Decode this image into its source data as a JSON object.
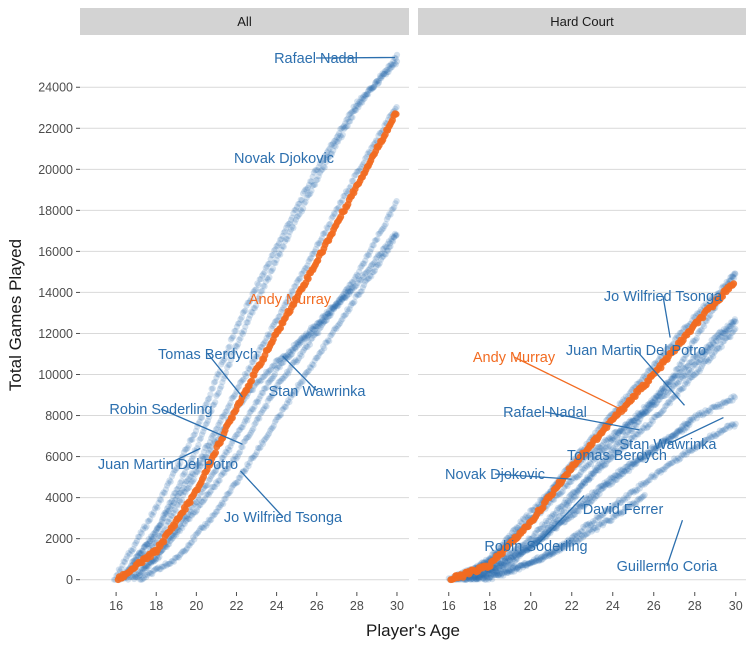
{
  "chart_data": {
    "type": "scatter",
    "xlabel": "Player's Age",
    "ylabel": "Total Games Played",
    "xticks": [
      16,
      18,
      20,
      22,
      24,
      26,
      28,
      30
    ],
    "yticks": [
      0,
      2000,
      4000,
      6000,
      8000,
      10000,
      12000,
      14000,
      16000,
      18000,
      20000,
      22000,
      24000
    ],
    "ylim": [
      -600,
      26400
    ],
    "colors": {
      "highlight": "#f26b21",
      "others": "#2c6fae",
      "strip": "#d3d3d3",
      "grid": "#d9d9d9"
    },
    "panels": [
      {
        "strip": "All",
        "xlim": [
          14.2,
          30.6
        ],
        "highlight": "Andy Murray",
        "series": [
          {
            "name": "Rafael Nadal",
            "points": [
              [
                16.2,
                0
              ],
              [
                18,
                2300
              ],
              [
                20,
                6400
              ],
              [
                22,
                11400
              ],
              [
                24,
                15600
              ],
              [
                26,
                19500
              ],
              [
                28,
                23000
              ],
              [
                30,
                25500
              ]
            ]
          },
          {
            "name": "Novak Djokovic",
            "points": [
              [
                15.9,
                0
              ],
              [
                18,
                3500
              ],
              [
                20,
                7300
              ],
              [
                22,
                12300
              ],
              [
                24,
                16200
              ],
              [
                26,
                20000
              ],
              [
                28,
                23200
              ],
              [
                30,
                25200
              ]
            ]
          },
          {
            "name": "Andy Murray",
            "points": [
              [
                16.1,
                0
              ],
              [
                18,
                1400
              ],
              [
                20,
                4300
              ],
              [
                22,
                8400
              ],
              [
                24,
                12000
              ],
              [
                26,
                15500
              ],
              [
                28,
                19200
              ],
              [
                30,
                22800
              ]
            ]
          },
          {
            "name": "Tomas Berdych",
            "points": [
              [
                16.3,
                0
              ],
              [
                18,
                2400
              ],
              [
                20,
                5500
              ],
              [
                22,
                9200
              ],
              [
                24,
                12600
              ],
              [
                26,
                16200
              ],
              [
                28,
                19800
              ],
              [
                30,
                23100
              ]
            ]
          },
          {
            "name": "Stan Wawrinka",
            "points": [
              [
                16.6,
                0
              ],
              [
                18,
                1000
              ],
              [
                20,
                3400
              ],
              [
                22,
                6000
              ],
              [
                24,
                9400
              ],
              [
                26,
                12000
              ],
              [
                28,
                14800
              ],
              [
                30,
                18400
              ]
            ]
          },
          {
            "name": "Robin Soderling",
            "points": [
              [
                16.9,
                0
              ],
              [
                18,
                1100
              ],
              [
                20,
                3800
              ],
              [
                22,
                7000
              ],
              [
                24,
                10200
              ],
              [
                26,
                12500
              ],
              [
                27.8,
                14200
              ]
            ]
          },
          {
            "name": "Juan Martin Del Potro",
            "points": [
              [
                16.4,
                0
              ],
              [
                18,
                1800
              ],
              [
                20,
                5200
              ],
              [
                22,
                8400
              ],
              [
                24,
                10600
              ],
              [
                26,
                12300
              ],
              [
                28,
                14400
              ],
              [
                30,
                16900
              ]
            ]
          },
          {
            "name": "Jo Wilfried Tsonga",
            "points": [
              [
                17.2,
                0
              ],
              [
                19,
                1000
              ],
              [
                21,
                3300
              ],
              [
                23,
                6200
              ],
              [
                25,
                9300
              ],
              [
                27,
                12300
              ],
              [
                29,
                15300
              ],
              [
                30,
                16800
              ]
            ]
          }
        ],
        "labels": [
          {
            "text": "Rafael Nadal",
            "target": [
              29.9,
              25450
            ]
          },
          {
            "text": "Novak Djokovic",
            "target": null
          },
          {
            "text": "Andy Murray",
            "target": null
          },
          {
            "text": "Tomas Berdych",
            "target": [
              22.3,
              8900
            ]
          },
          {
            "text": "Stan Wawrinka",
            "target": [
              24.3,
              10900
            ]
          },
          {
            "text": "Robin Soderling",
            "target": [
              22.3,
              6600
            ]
          },
          {
            "text": "Juan Martin Del Potro",
            "target": [
              20.2,
              6400
            ]
          },
          {
            "text": "Jo Wilfried Tsonga",
            "target": [
              22.2,
              5300
            ]
          }
        ]
      },
      {
        "strip": "Hard Court",
        "xlim": [
          14.5,
          30.5
        ],
        "highlight": "Andy Murray",
        "series": [
          {
            "name": "Andy Murray",
            "points": [
              [
                16.1,
                0
              ],
              [
                18,
                700
              ],
              [
                20,
                2800
              ],
              [
                22,
                5500
              ],
              [
                24,
                7800
              ],
              [
                26,
                10000
              ],
              [
                28,
                12400
              ],
              [
                29.9,
                14500
              ]
            ]
          },
          {
            "name": "Jo Wilfried Tsonga",
            "points": [
              [
                17.3,
                0
              ],
              [
                19,
                800
              ],
              [
                21,
                2600
              ],
              [
                23,
                5200
              ],
              [
                25,
                7400
              ],
              [
                27,
                10000
              ],
              [
                28.5,
                12500
              ],
              [
                30,
                15000
              ]
            ]
          },
          {
            "name": "Juan Martin Del Potro",
            "points": [
              [
                16.5,
                0
              ],
              [
                18,
                1000
              ],
              [
                20,
                3300
              ],
              [
                22,
                5400
              ],
              [
                24,
                7000
              ],
              [
                26,
                8500
              ],
              [
                28,
                10400
              ],
              [
                30,
                12600
              ]
            ]
          },
          {
            "name": "Rafael Nadal",
            "points": [
              [
                16.3,
                0
              ],
              [
                18,
                600
              ],
              [
                20,
                2000
              ],
              [
                22,
                4100
              ],
              [
                24,
                6000
              ],
              [
                26,
                7800
              ],
              [
                28,
                10000
              ],
              [
                30,
                12200
              ]
            ]
          },
          {
            "name": "Novak Djokovic",
            "points": [
              [
                16.0,
                0
              ],
              [
                18,
                800
              ],
              [
                20,
                2900
              ],
              [
                22,
                5700
              ],
              [
                24,
                8100
              ],
              [
                26,
                10400
              ],
              [
                28,
                12800
              ],
              [
                30,
                14900
              ]
            ]
          },
          {
            "name": "Tomas Berdych",
            "points": [
              [
                16.4,
                0
              ],
              [
                18,
                900
              ],
              [
                20,
                2800
              ],
              [
                22,
                4800
              ],
              [
                24,
                6800
              ],
              [
                26,
                8800
              ],
              [
                28,
                10800
              ],
              [
                30,
                12700
              ]
            ]
          },
          {
            "name": "Stan Wawrinka",
            "points": [
              [
                16.7,
                0
              ],
              [
                18,
                500
              ],
              [
                20,
                1600
              ],
              [
                22,
                3100
              ],
              [
                24,
                4800
              ],
              [
                26,
                6300
              ],
              [
                28,
                7900
              ],
              [
                30,
                8900
              ]
            ]
          },
          {
            "name": "Robin Soderling",
            "points": [
              [
                17.0,
                0
              ],
              [
                18,
                400
              ],
              [
                20,
                1600
              ],
              [
                22,
                3300
              ],
              [
                24,
                5000
              ],
              [
                26,
                6400
              ],
              [
                27.8,
                7600
              ]
            ]
          },
          {
            "name": "David Ferrer",
            "points": [
              [
                17.7,
                0
              ],
              [
                19,
                400
              ],
              [
                21,
                1300
              ],
              [
                23,
                2800
              ],
              [
                25,
                4300
              ],
              [
                27,
                5800
              ],
              [
                29,
                7100
              ],
              [
                30,
                7600
              ]
            ]
          },
          {
            "name": "Guillermo Coria",
            "points": [
              [
                16.8,
                0
              ],
              [
                18,
                200
              ],
              [
                20,
                800
              ],
              [
                22,
                1800
              ],
              [
                24,
                3000
              ],
              [
                25.6,
                4100
              ]
            ]
          }
        ],
        "labels": [
          {
            "text": "Jo Wilfried Tsonga",
            "target": [
              26.8,
              11800
            ]
          },
          {
            "text": "Andy Murray",
            "target": [
              24.6,
              8200
            ]
          },
          {
            "text": "Juan Martin Del Potro",
            "target": [
              27.5,
              8500
            ]
          },
          {
            "text": "Rafael Nadal",
            "target": [
              25.3,
              7300
            ]
          },
          {
            "text": "Stan Wawrinka",
            "target": [
              29.4,
              7900
            ]
          },
          {
            "text": "Tomas Berdych",
            "target": null
          },
          {
            "text": "Novak Djokovic",
            "target": [
              22.0,
              4900
            ]
          },
          {
            "text": "David Ferrer",
            "target": null
          },
          {
            "text": "Robin Soderling",
            "target": [
              22.6,
              4100
            ]
          },
          {
            "text": "Guillermo Coria",
            "target": [
              27.4,
              2900
            ]
          }
        ]
      }
    ]
  }
}
